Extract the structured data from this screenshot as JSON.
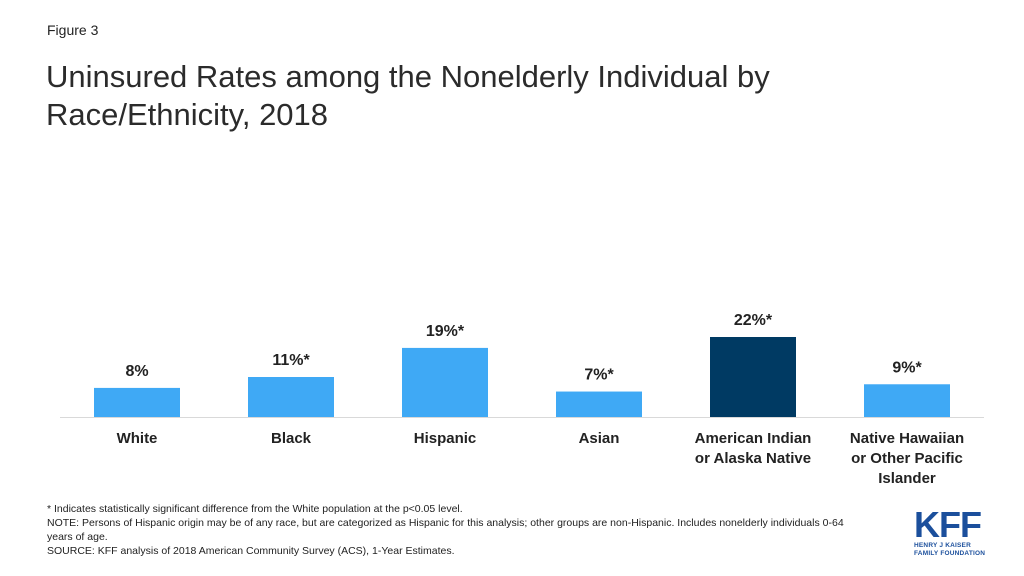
{
  "figure_label": "Figure 3",
  "title": "Uninsured Rates among the Nonelderly Individual by Race/Ethnicity, 2018",
  "chart_data": {
    "type": "bar",
    "categories": [
      [
        "White"
      ],
      [
        "Black"
      ],
      [
        "Hispanic"
      ],
      [
        "Asian"
      ],
      [
        "American Indian",
        "or Alaska Native"
      ],
      [
        "Native Hawaiian",
        "or Other Pacific",
        "Islander"
      ]
    ],
    "values": [
      8,
      11,
      19,
      7,
      22,
      9
    ],
    "data_labels": [
      "8%",
      "11%*",
      "19%*",
      "7%*",
      "22%*",
      "9%*"
    ],
    "bar_colors": [
      "#3fa9f5",
      "#3fa9f5",
      "#3fa9f5",
      "#3fa9f5",
      "#003a63",
      "#3fa9f5"
    ],
    "xlabel": "",
    "ylabel": "",
    "ylim": [
      0,
      22
    ],
    "grid": false,
    "legend": "none"
  },
  "footnotes": {
    "significance": "* Indicates statistically significant difference from the White population at the p<0.05 level.",
    "note": "NOTE: Persons of Hispanic origin may be of any race, but are categorized as Hispanic for this analysis; other groups are non-Hispanic. Includes nonelderly individuals 0-64 years of age.",
    "source": "SOURCE: KFF analysis of 2018 American Community Survey (ACS), 1-Year Estimates."
  },
  "logo": {
    "mark": "KFF",
    "line1": "HENRY J KAISER",
    "line2": "FAMILY FOUNDATION"
  }
}
